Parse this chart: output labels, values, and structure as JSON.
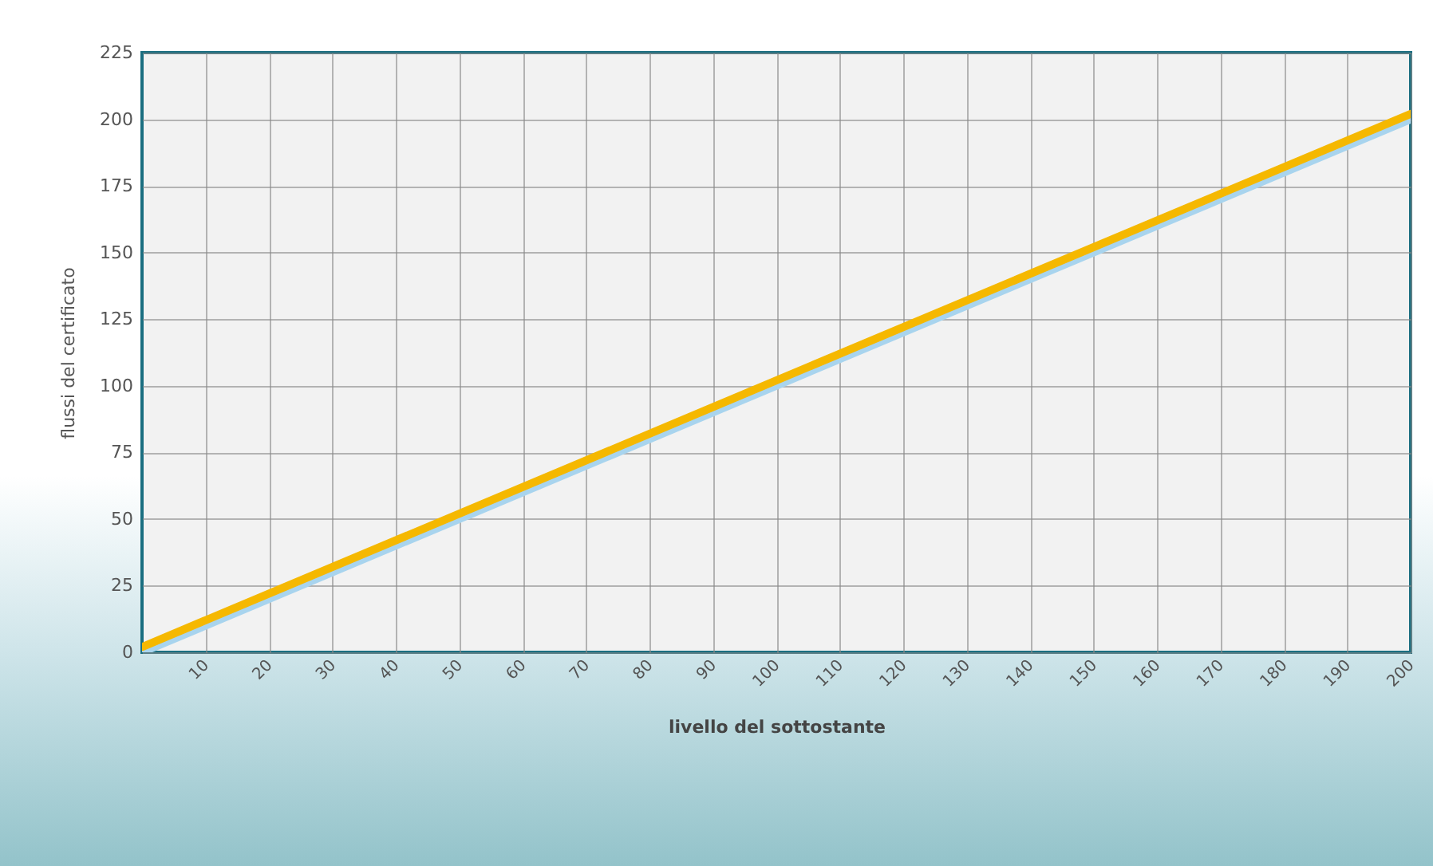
{
  "chart_data": {
    "type": "line",
    "xlabel": "livello del sottostante",
    "ylabel": "flussi del certificato",
    "x": [
      0,
      200
    ],
    "series": [
      {
        "color": "#a8d4ee",
        "values": [
          0,
          200
        ]
      },
      {
        "color": "#f5b800",
        "values": [
          2,
          202
        ]
      }
    ],
    "xlim": [
      0,
      200
    ],
    "xticks": [
      10,
      20,
      30,
      40,
      50,
      60,
      70,
      80,
      90,
      100,
      110,
      120,
      130,
      140,
      150,
      160,
      170,
      180,
      190,
      200
    ],
    "ylim": [
      0,
      225
    ],
    "yticks": [
      0,
      25,
      50,
      75,
      100,
      125,
      150,
      175,
      200,
      225
    ],
    "grid": true,
    "marker": "none",
    "line_style": "solid"
  }
}
